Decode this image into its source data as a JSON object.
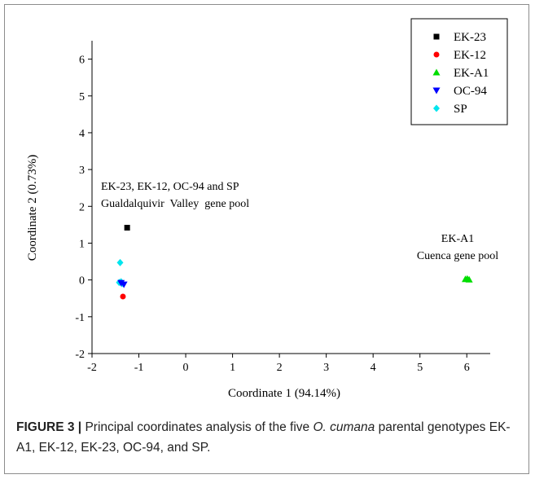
{
  "chart_data": {
    "type": "scatter",
    "title": "",
    "xlabel": "Coordinate 1 (94.14%)",
    "ylabel": "Coordinate 2 (0.73%)",
    "xlim": [
      -2,
      6.5
    ],
    "ylim": [
      -2,
      6.5
    ],
    "xticks": [
      -2,
      -1,
      0,
      1,
      2,
      3,
      4,
      5,
      6
    ],
    "yticks": [
      -2,
      -1,
      0,
      1,
      2,
      3,
      4,
      5,
      6
    ],
    "tick_labels_x": [
      "-2",
      "-1",
      "0",
      "1",
      "2",
      "3",
      "4",
      "5",
      "6"
    ],
    "tick_labels_y": [
      "-2",
      "-1",
      "0",
      "1",
      "2",
      "3",
      "4",
      "5",
      "6"
    ],
    "grid": false,
    "legend_position": "top-right",
    "series": [
      {
        "name": "EK-23",
        "marker": "square",
        "color": "#000000",
        "points": [
          {
            "x": -1.25,
            "y": 1.42
          }
        ]
      },
      {
        "name": "EK-12",
        "marker": "circle",
        "color": "#ff0000",
        "points": [
          {
            "x": -1.34,
            "y": -0.45
          }
        ]
      },
      {
        "name": "EK-A1",
        "marker": "triangle-up",
        "color": "#00dd00",
        "points": [
          {
            "x": 5.97,
            "y": 0.02
          },
          {
            "x": 6.05,
            "y": 0.01
          },
          {
            "x": 6.01,
            "y": 0.03
          }
        ]
      },
      {
        "name": "OC-94",
        "marker": "triangle-down",
        "color": "#0000ff",
        "points": [
          {
            "x": -1.32,
            "y": -0.12
          },
          {
            "x": -1.38,
            "y": -0.08
          }
        ]
      },
      {
        "name": "SP",
        "marker": "diamond",
        "color": "#00e5ee",
        "points": [
          {
            "x": -1.4,
            "y": 0.47
          },
          {
            "x": -1.42,
            "y": -0.07
          },
          {
            "x": -1.36,
            "y": -0.1
          },
          {
            "x": -1.38,
            "y": -0.05
          }
        ]
      }
    ],
    "annotations": [
      {
        "lines": [
          "EK-23, EK-12, OC-94 and SP",
          "Gualdalquivir  Valley  gene pool"
        ]
      },
      {
        "lines": [
          "EK-A1",
          "Cuenca gene pool"
        ]
      }
    ]
  },
  "caption": {
    "label": "FIGURE 3 |",
    "text_before": " Principal coordinates analysis of the five ",
    "species": "O. cumana",
    "text_after": " parental genotypes EK-A1, EK-12, EK-23, OC-94, and SP."
  }
}
